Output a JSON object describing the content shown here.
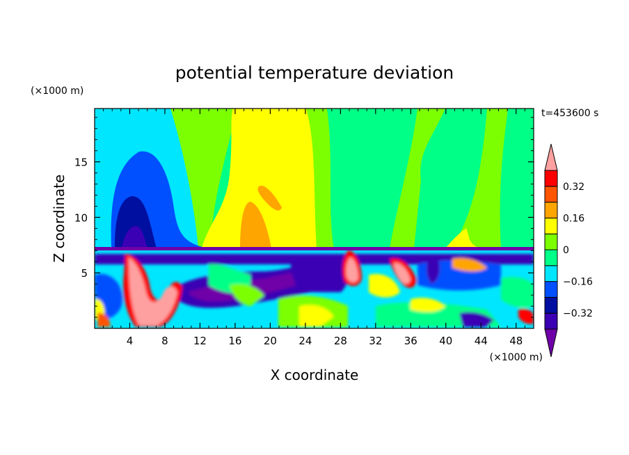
{
  "chart_data": {
    "type": "heatmap",
    "title": "potential temperature deviation",
    "xlabel": "X coordinate",
    "ylabel": "Z coordinate",
    "x_unit_label": "(×1000 m)",
    "y_unit_label": "(×1000 m)",
    "time_label": "t=453600 s",
    "xlim": [
      0,
      50
    ],
    "ylim": [
      0,
      19.8
    ],
    "x_ticks": [
      "4",
      "8",
      "12",
      "16",
      "20",
      "24",
      "28",
      "32",
      "36",
      "40",
      "44",
      "48"
    ],
    "x_tick_values": [
      4,
      8,
      12,
      16,
      20,
      24,
      28,
      32,
      36,
      40,
      44,
      48
    ],
    "y_ticks": [
      "5",
      "10",
      "15"
    ],
    "y_tick_values": [
      5,
      10,
      15
    ],
    "colorbar": {
      "levels": [
        -0.4,
        -0.32,
        -0.24,
        -0.16,
        -0.08,
        0,
        0.08,
        0.16,
        0.24,
        0.32,
        0.4
      ],
      "labels": [
        "0.32",
        "0.16",
        "0",
        "−0.16",
        "−0.32"
      ],
      "label_values": [
        0.32,
        0.16,
        0,
        -0.16,
        -0.32
      ],
      "colors": [
        "#6f00a8",
        "#3b00b4",
        "#000fa0",
        "#0050ff",
        "#00e6ff",
        "#00ff87",
        "#7cff00",
        "#ffff00",
        "#ffa500",
        "#ff5500",
        "#ff0000",
        "#ffa0a0"
      ],
      "extend": "both"
    },
    "grid": false,
    "legend": "colorbar-right"
  }
}
